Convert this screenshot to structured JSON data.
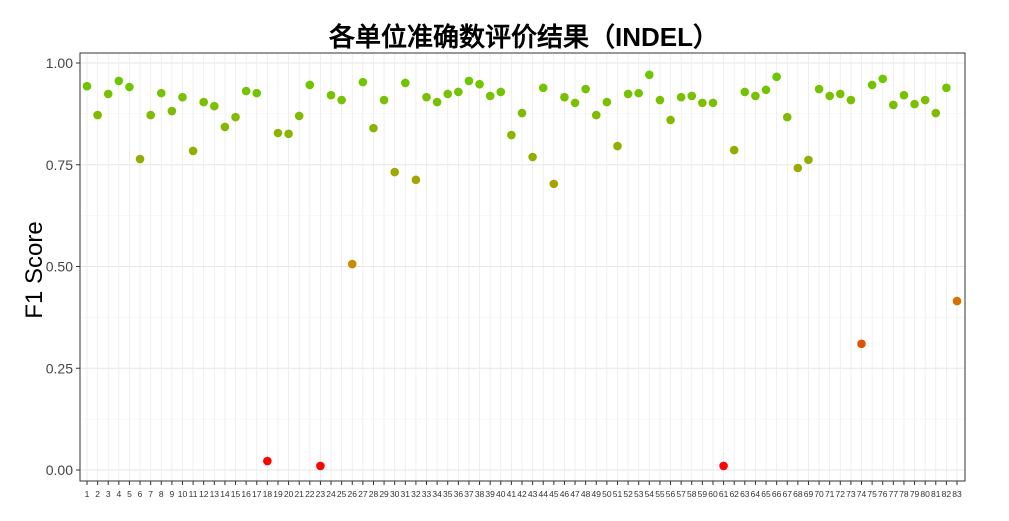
{
  "chart_data": {
    "type": "scatter",
    "title": "各单位准确数评价结果（INDEL）",
    "xlabel": "",
    "ylabel": "F1 Score",
    "x": [
      1,
      2,
      3,
      4,
      5,
      6,
      7,
      8,
      9,
      10,
      11,
      12,
      13,
      14,
      15,
      16,
      17,
      18,
      19,
      20,
      21,
      22,
      23,
      24,
      25,
      26,
      27,
      28,
      29,
      30,
      31,
      32,
      33,
      34,
      35,
      36,
      37,
      38,
      39,
      40,
      41,
      42,
      43,
      44,
      45,
      46,
      47,
      48,
      49,
      50,
      51,
      52,
      53,
      54,
      55,
      56,
      57,
      58,
      59,
      60,
      61,
      62,
      63,
      64,
      65,
      66,
      67,
      68,
      69,
      70,
      71,
      72,
      73,
      74,
      75,
      76,
      77,
      78,
      79,
      80,
      81,
      82,
      83
    ],
    "y": [
      0.943,
      0.872,
      0.924,
      0.956,
      0.941,
      0.764,
      0.872,
      0.926,
      0.882,
      0.916,
      0.784,
      0.904,
      0.894,
      0.843,
      0.867,
      0.931,
      0.926,
      0.022,
      0.828,
      0.826,
      0.87,
      0.946,
      0.01,
      0.921,
      0.909,
      0.506,
      0.953,
      0.84,
      0.909,
      0.732,
      0.951,
      0.713,
      0.916,
      0.904,
      0.924,
      0.929,
      0.956,
      0.948,
      0.919,
      0.929,
      0.823,
      0.877,
      0.769,
      0.939,
      0.703,
      0.916,
      0.902,
      0.936,
      0.872,
      0.904,
      0.796,
      0.924,
      0.926,
      0.971,
      0.909,
      0.86,
      0.916,
      0.919,
      0.902,
      0.902,
      0.01,
      0.786,
      0.929,
      0.919,
      0.934,
      0.966,
      0.867,
      0.742,
      0.762,
      0.936,
      0.919,
      0.924,
      0.909,
      0.31,
      0.946,
      0.961,
      0.897,
      0.921,
      0.899,
      0.909,
      0.877,
      0.939,
      0.415
    ],
    "yticks": [
      "0.00",
      "0.25",
      "0.50",
      "0.75",
      "1.00"
    ],
    "ylim": [
      0,
      1
    ],
    "xlim": [
      1,
      83
    ],
    "grid": true,
    "color_scale": {
      "low": "#ff0000",
      "mid": "#cc8800",
      "high": "#66cc00"
    }
  }
}
